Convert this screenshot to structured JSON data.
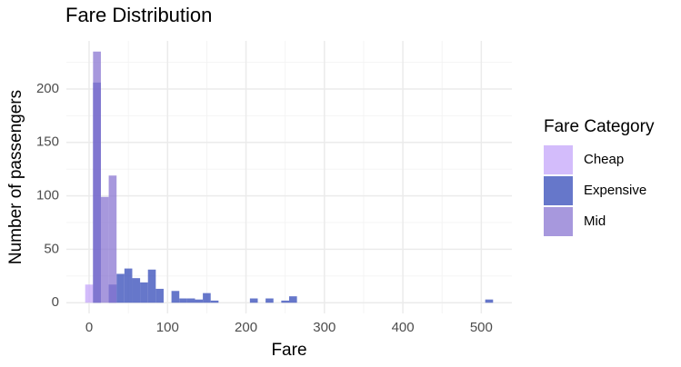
{
  "chart_data": {
    "type": "histogram",
    "title": "Fare Distribution",
    "x_label": "Fare",
    "y_label": "Number of passengers",
    "legend_title": "Fare Category",
    "bins": [
      -5,
      5,
      15,
      25,
      35,
      45,
      55,
      65,
      75,
      85,
      95,
      105,
      115,
      125,
      135,
      145,
      155,
      165,
      175,
      185,
      195,
      205,
      215,
      225,
      235,
      245,
      255,
      265,
      275,
      285,
      295,
      305,
      315,
      325,
      335,
      345,
      355,
      365,
      375,
      385,
      395,
      405,
      415,
      425,
      435,
      445,
      455,
      465,
      475,
      485,
      495,
      505,
      515
    ],
    "series": [
      {
        "name": "Cheap",
        "color": "#c4a5fa",
        "values": [
          17,
          0,
          0,
          0,
          0,
          0,
          0,
          0,
          0,
          0,
          0,
          0,
          0,
          0,
          0,
          0,
          0,
          0,
          0,
          0,
          0,
          0,
          0,
          0,
          0,
          0,
          0,
          0,
          0,
          0,
          0,
          0,
          0,
          0,
          0,
          0,
          0,
          0,
          0,
          0,
          0,
          0,
          0,
          0,
          0,
          0,
          0,
          0,
          0,
          0,
          0,
          0
        ]
      },
      {
        "name": "Expensive",
        "color": "#3349b8",
        "values": [
          0,
          206,
          0,
          17,
          27,
          32,
          23,
          19,
          31,
          13,
          0,
          11,
          4,
          4,
          3,
          9,
          2,
          0,
          0,
          0,
          0,
          4,
          0,
          4,
          0,
          2,
          6,
          0,
          0,
          0,
          0,
          0,
          0,
          0,
          0,
          0,
          0,
          0,
          0,
          0,
          0,
          0,
          0,
          0,
          0,
          0,
          0,
          0,
          0,
          0,
          0,
          3
        ]
      },
      {
        "name": "Mid",
        "color": "#8a75d2",
        "values": [
          0,
          235,
          99,
          119,
          0,
          0,
          0,
          0,
          0,
          0,
          0,
          0,
          0,
          0,
          0,
          0,
          0,
          0,
          0,
          0,
          0,
          0,
          0,
          0,
          0,
          0,
          0,
          0,
          0,
          0,
          0,
          0,
          0,
          0,
          0,
          0,
          0,
          0,
          0,
          0,
          0,
          0,
          0,
          0,
          0,
          0,
          0,
          0,
          0,
          0,
          0,
          0
        ]
      }
    ],
    "alpha": 0.75,
    "xlim": [
      -29,
      539
    ],
    "ylim": [
      -10,
      245
    ],
    "xticks": [
      0,
      100,
      200,
      300,
      400,
      500
    ],
    "yticks": [
      0,
      50,
      100,
      150,
      200
    ],
    "x_minor_ticks": [
      50,
      150,
      250,
      350,
      450
    ],
    "y_minor_ticks": [
      25,
      75,
      125,
      175,
      225
    ],
    "grid": true,
    "legend": "right"
  }
}
